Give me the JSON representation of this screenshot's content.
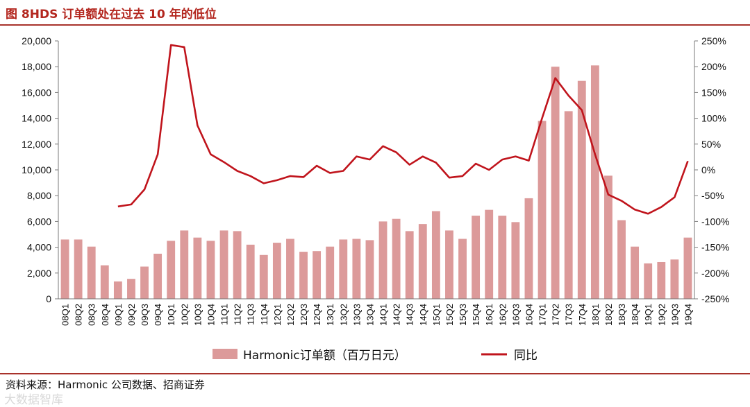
{
  "header": {
    "title": "图 8HDS 订单额处在过去 10 年的低位"
  },
  "footer": {
    "source": "资料来源：Harmonic 公司数据、招商证券",
    "watermark": "大数据智库"
  },
  "chart_data": {
    "type": "bar",
    "title": "",
    "xlabel": "",
    "ylabel": "",
    "categories": [
      "08Q1",
      "08Q2",
      "08Q3",
      "08Q4",
      "09Q1",
      "09Q2",
      "09Q3",
      "09Q4",
      "10Q1",
      "10Q2",
      "10Q3",
      "10Q4",
      "11Q1",
      "11Q2",
      "11Q3",
      "11Q4",
      "12Q1",
      "12Q2",
      "12Q3",
      "12Q4",
      "13Q1",
      "13Q2",
      "13Q3",
      "13Q4",
      "14Q1",
      "14Q2",
      "14Q3",
      "14Q4",
      "15Q1",
      "15Q2",
      "15Q3",
      "15Q4",
      "16Q1",
      "16Q2",
      "16Q3",
      "16Q4",
      "17Q1",
      "17Q2",
      "17Q3",
      "17Q4",
      "18Q1",
      "18Q2",
      "18Q3",
      "18Q4",
      "19Q1",
      "19Q2",
      "19Q3",
      "19Q4"
    ],
    "series": [
      {
        "name": "Harmonic订单额（百万日元）",
        "type": "bar",
        "axis": "left",
        "color": "#dc9a9a",
        "values": [
          4600,
          4600,
          4050,
          2600,
          1350,
          1550,
          2500,
          3500,
          4500,
          5300,
          4750,
          4500,
          5300,
          5250,
          4200,
          3400,
          4350,
          4650,
          3650,
          3700,
          4050,
          4600,
          4650,
          4550,
          6000,
          6200,
          5250,
          5800,
          6800,
          5300,
          4650,
          6450,
          6900,
          6450,
          5950,
          7800,
          13800,
          18000,
          14550,
          16900,
          18100,
          9550,
          6100,
          4050,
          2750,
          2850,
          3050,
          4750
        ]
      },
      {
        "name": "同比",
        "type": "line",
        "axis": "right",
        "color": "#c0141c",
        "values": [
          null,
          null,
          null,
          null,
          -71,
          -67,
          -38,
          30,
          242,
          238,
          86,
          30,
          15,
          -2,
          -12,
          -26,
          -20,
          -12,
          -14,
          8,
          -6,
          -2,
          26,
          20,
          46,
          34,
          10,
          26,
          14,
          -15,
          -12,
          12,
          0,
          20,
          26,
          18,
          100,
          178,
          144,
          116,
          30,
          -48,
          -60,
          -77,
          -85,
          -72,
          -53,
          17
        ]
      }
    ],
    "y_left": {
      "ylim": [
        0,
        20000
      ],
      "ticks": [
        "0",
        "2,000",
        "4,000",
        "6,000",
        "8,000",
        "10,000",
        "12,000",
        "14,000",
        "16,000",
        "18,000",
        "20,000"
      ]
    },
    "y_right": {
      "ylim": [
        -250,
        250
      ],
      "ticks": [
        "-250%",
        "-200%",
        "-150%",
        "-100%",
        "-50%",
        "0%",
        "50%",
        "100%",
        "150%",
        "200%",
        "250%"
      ]
    },
    "grid": false,
    "legend": "bottom-center"
  }
}
